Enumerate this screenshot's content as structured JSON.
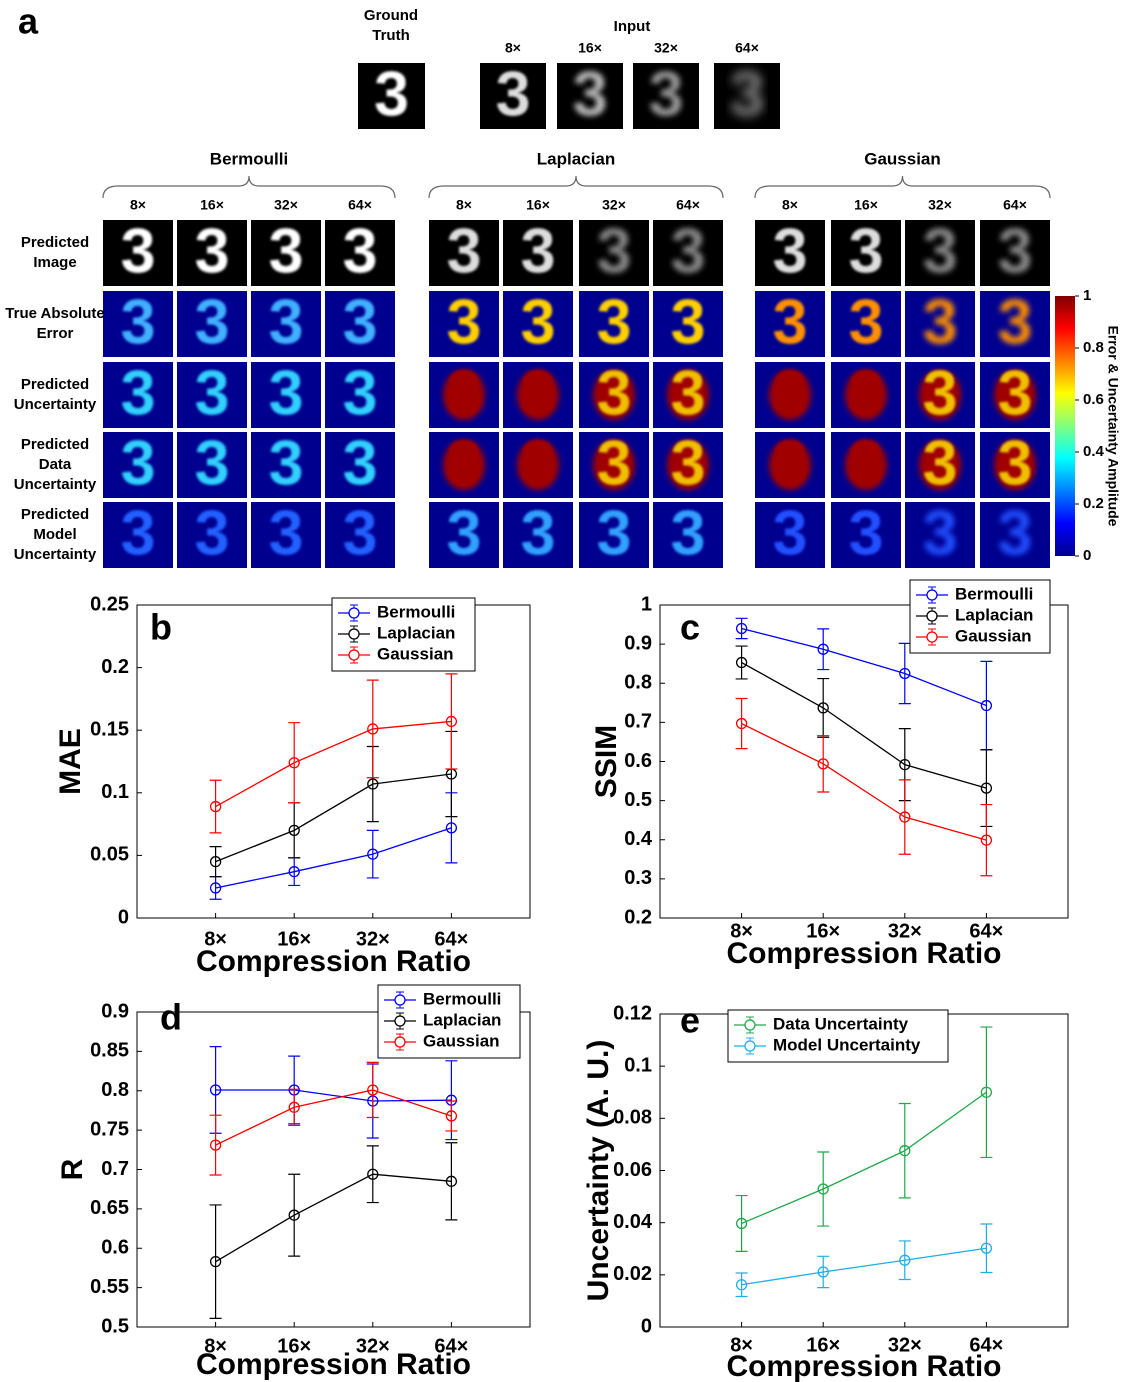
{
  "panel_a": {
    "label": "a",
    "ground_truth": "Ground Truth",
    "input": "Input",
    "input_ratios": [
      "8×",
      "16×",
      "32×",
      "64×"
    ],
    "groups": [
      {
        "name": "Bermoulli",
        "ratios": [
          "8×",
          "16×",
          "32×",
          "64×"
        ]
      },
      {
        "name": "Laplacian",
        "ratios": [
          "8×",
          "16×",
          "32×",
          "64×"
        ]
      },
      {
        "name": "Gaussian",
        "ratios": [
          "8×",
          "16×",
          "32×",
          "64×"
        ]
      }
    ],
    "rows": [
      "Predicted Image",
      "True Absolute Error",
      "Predicted Uncertainty",
      "Predicted Data Uncertainty",
      "Predicted Model Uncertainty"
    ],
    "colorbar": {
      "label": "Error & Uncertainty Amplitude",
      "ticks": [
        0,
        0.2,
        0.4,
        0.6,
        0.8,
        1
      ]
    }
  },
  "chart_data": [
    {
      "type": "line",
      "panel_label": "b",
      "ylabel": "MAE",
      "xlabel": "Compression Ratio",
      "categories": [
        "8×",
        "16×",
        "32×",
        "64×"
      ],
      "ylim": [
        0,
        0.25
      ],
      "yticks": [
        0,
        0.05,
        0.1,
        0.15,
        0.2,
        0.25
      ],
      "legend": "upper right",
      "series": [
        {
          "name": "Bermoulli",
          "color": "#0000ff",
          "values": [
            0.024,
            0.037,
            0.051,
            0.072
          ],
          "errors": [
            0.009,
            0.011,
            0.019,
            0.028
          ]
        },
        {
          "name": "Laplacian",
          "color": "#000000",
          "values": [
            0.045,
            0.07,
            0.107,
            0.115
          ],
          "errors": [
            0.012,
            0.022,
            0.03,
            0.034
          ]
        },
        {
          "name": "Gaussian",
          "color": "#ff0000",
          "values": [
            0.089,
            0.124,
            0.151,
            0.157
          ],
          "errors": [
            0.021,
            0.032,
            0.039,
            0.038
          ]
        }
      ]
    },
    {
      "type": "line",
      "panel_label": "c",
      "ylabel": "SSIM",
      "xlabel": "Compression Ratio",
      "categories": [
        "8×",
        "16×",
        "32×",
        "64×"
      ],
      "ylim": [
        0.2,
        1
      ],
      "yticks": [
        0.2,
        0.3,
        0.4,
        0.5,
        0.6,
        0.7,
        0.8,
        0.9,
        1
      ],
      "legend": "upper right",
      "series": [
        {
          "name": "Bermoulli",
          "color": "#0000ff",
          "values": [
            0.94,
            0.887,
            0.825,
            0.743
          ],
          "errors": [
            0.026,
            0.052,
            0.077,
            0.113
          ]
        },
        {
          "name": "Laplacian",
          "color": "#000000",
          "values": [
            0.853,
            0.737,
            0.592,
            0.532
          ],
          "errors": [
            0.042,
            0.075,
            0.092,
            0.098
          ]
        },
        {
          "name": "Gaussian",
          "color": "#ff0000",
          "values": [
            0.697,
            0.594,
            0.458,
            0.399
          ],
          "errors": [
            0.064,
            0.072,
            0.095,
            0.091
          ]
        }
      ]
    },
    {
      "type": "line",
      "panel_label": "d",
      "ylabel": "R",
      "xlabel": "Compression Ratio",
      "categories": [
        "8×",
        "16×",
        "32×",
        "64×"
      ],
      "ylim": [
        0.5,
        0.9
      ],
      "yticks": [
        0.5,
        0.55,
        0.6,
        0.65,
        0.7,
        0.75,
        0.8,
        0.85,
        0.9
      ],
      "legend": "upper right",
      "series": [
        {
          "name": "Bermoulli",
          "color": "#0000ff",
          "values": [
            0.801,
            0.801,
            0.787,
            0.788
          ],
          "errors": [
            0.055,
            0.043,
            0.047,
            0.05
          ]
        },
        {
          "name": "Laplacian",
          "color": "#000000",
          "values": [
            0.583,
            0.642,
            0.694,
            0.685
          ],
          "errors": [
            0.072,
            0.052,
            0.036,
            0.049
          ]
        },
        {
          "name": "Gaussian",
          "color": "#ff0000",
          "values": [
            0.731,
            0.779,
            0.801,
            0.768
          ],
          "errors": [
            0.038,
            0.023,
            0.035,
            0.019
          ]
        }
      ]
    },
    {
      "type": "line",
      "panel_label": "e",
      "ylabel": "Uncertainty (A. U.)",
      "xlabel": "Compression Ratio",
      "categories": [
        "8×",
        "16×",
        "32×",
        "64×"
      ],
      "ylim": [
        0,
        0.12
      ],
      "yticks": [
        0,
        0.02,
        0.04,
        0.06,
        0.08,
        0.1,
        0.12
      ],
      "legend": "upper left",
      "series": [
        {
          "name": "Data Uncertainty",
          "color": "#20a84a",
          "values": [
            0.0397,
            0.0529,
            0.0676,
            0.09
          ],
          "errors": [
            0.0107,
            0.0142,
            0.0181,
            0.025
          ]
        },
        {
          "name": "Model Uncertainty",
          "color": "#1eaee4",
          "values": [
            0.0162,
            0.0211,
            0.0256,
            0.0302
          ],
          "errors": [
            0.0045,
            0.006,
            0.0074,
            0.0093
          ]
        }
      ]
    }
  ]
}
